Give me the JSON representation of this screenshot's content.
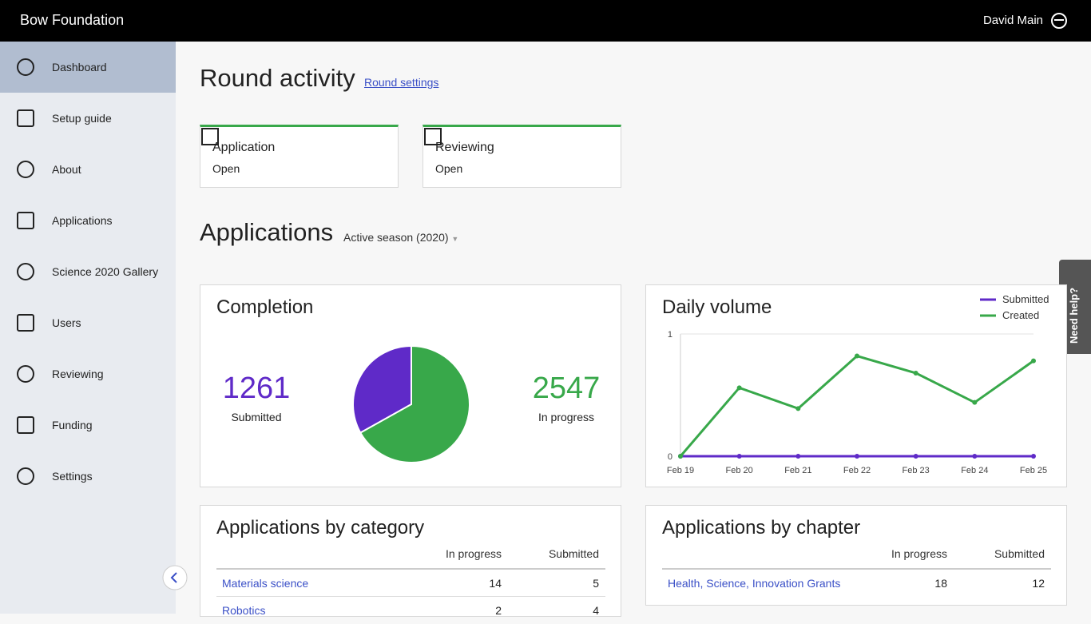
{
  "header": {
    "brand": "Bow Foundation",
    "user": "David Main"
  },
  "nav": [
    "Dashboard",
    "Setup guide",
    "About",
    "Applications",
    "Science 2020 Gallery",
    "Users",
    "Reviewing",
    "Funding",
    "Settings"
  ],
  "help_tab": "Need help?",
  "round": {
    "title": "Round activity",
    "link": "Round settings",
    "cards": [
      {
        "title": "Application",
        "status": "Open"
      },
      {
        "title": "Reviewing",
        "status": "Open"
      }
    ]
  },
  "applications": {
    "title": "Applications",
    "season": "Active season (2020)"
  },
  "completion": {
    "type": "pie",
    "title": "Completion",
    "series": [
      {
        "name": "Submitted",
        "color": "#5f2ac8",
        "value": 1261
      },
      {
        "name": "In progress",
        "color": "#38a84a",
        "value": 2547
      }
    ]
  },
  "daily": {
    "type": "line",
    "title": "Daily volume",
    "categories": [
      "Feb 19",
      "Feb 20",
      "Feb 21",
      "Feb 22",
      "Feb 23",
      "Feb 24",
      "Feb 25"
    ],
    "series": [
      {
        "name": "Submitted",
        "color": "#5f2ac8",
        "values": [
          0,
          0,
          0,
          0,
          0,
          0,
          0
        ]
      },
      {
        "name": "Created",
        "color": "#38a84a",
        "values": [
          0,
          0.56,
          0.39,
          0.82,
          0.68,
          0.44,
          0.78
        ]
      }
    ],
    "ylim": [
      0,
      1
    ],
    "yticks": [
      0,
      1
    ],
    "grid": true
  },
  "by_category": {
    "title": "Applications by category",
    "columns": [
      "In progress",
      "Submitted"
    ],
    "rows": [
      [
        "Materials science",
        14,
        5
      ],
      [
        "Robotics",
        2,
        4
      ]
    ]
  },
  "by_chapter": {
    "title": "Applications by chapter",
    "columns": [
      "In progress",
      "Submitted"
    ],
    "rows": [
      [
        "Health, Science, Innovation Grants",
        18,
        12
      ]
    ]
  }
}
